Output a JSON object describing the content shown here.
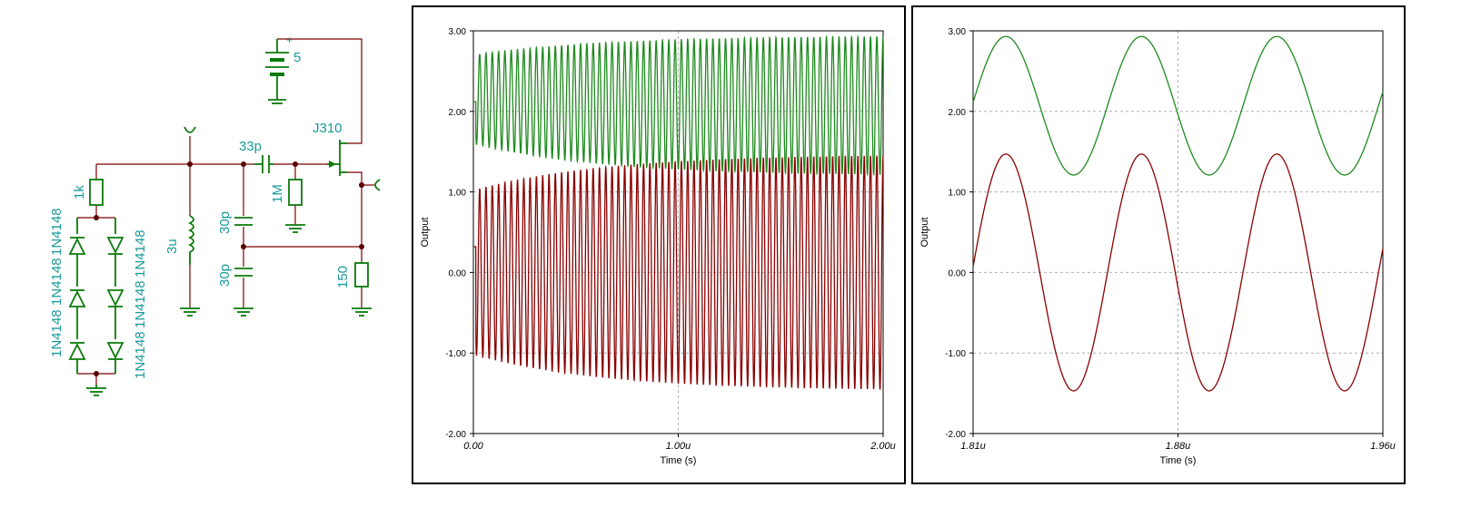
{
  "colors": {
    "wire": "#7a0000",
    "component": "#0a7a0a",
    "label": "#1a9a9a",
    "series_top": "#1e8a1e",
    "series_bottom": "#8b0000",
    "grid": "#b0b0b0"
  },
  "schematic": {
    "battery": "5",
    "battery_plus": "+",
    "jfet": "J310",
    "coupling_cap": "33p",
    "gate_resistor": "1M",
    "cap_upper": "30p",
    "cap_lower": "30p",
    "source_resistor": "150",
    "inductor": "3u",
    "series_resistor": "1k",
    "diodes": [
      "1N4148",
      "1N4148",
      "1N4148",
      "1N4148",
      "1N4148",
      "1N4148"
    ]
  },
  "chart_data": [
    {
      "type": "line",
      "xlabel": "Time (s)",
      "ylabel": "Output",
      "xlim": [
        0,
        2.0
      ],
      "ylim": [
        -2.0,
        3.0
      ],
      "xticks": [
        "0.00",
        "1.00u",
        "2.00u"
      ],
      "yticks": [
        "-2.00",
        "-1.00",
        "0.00",
        "1.00",
        "2.00",
        "3.00"
      ],
      "grid": true,
      "cycles": 65,
      "series": [
        {
          "key": "top",
          "start": 2.12,
          "start_amplitude": 0.55,
          "end_amplitude": 0.87,
          "center": 2.07
        },
        {
          "key": "bottom",
          "start": 0.32,
          "start_amplitude": 1.02,
          "end_amplitude": 1.47,
          "center": 0.0
        }
      ]
    },
    {
      "type": "line",
      "xlabel": "Time (s)",
      "ylabel": "Output",
      "xlim": [
        1.81,
        1.96
      ],
      "ylim": [
        -2.0,
        3.0
      ],
      "xticks": [
        "1.81u",
        "1.88u",
        "1.96u"
      ],
      "yticks": [
        "-2.00",
        "-1.00",
        "0.00",
        "1.00",
        "2.00",
        "3.00"
      ],
      "grid": true,
      "period_us": 0.0496,
      "series": [
        {
          "key": "top",
          "max": 2.93,
          "min": 1.21,
          "first_peak": 1.822
        },
        {
          "key": "bottom",
          "max": 1.47,
          "min": -1.47,
          "first_peak": 1.822
        }
      ]
    }
  ]
}
